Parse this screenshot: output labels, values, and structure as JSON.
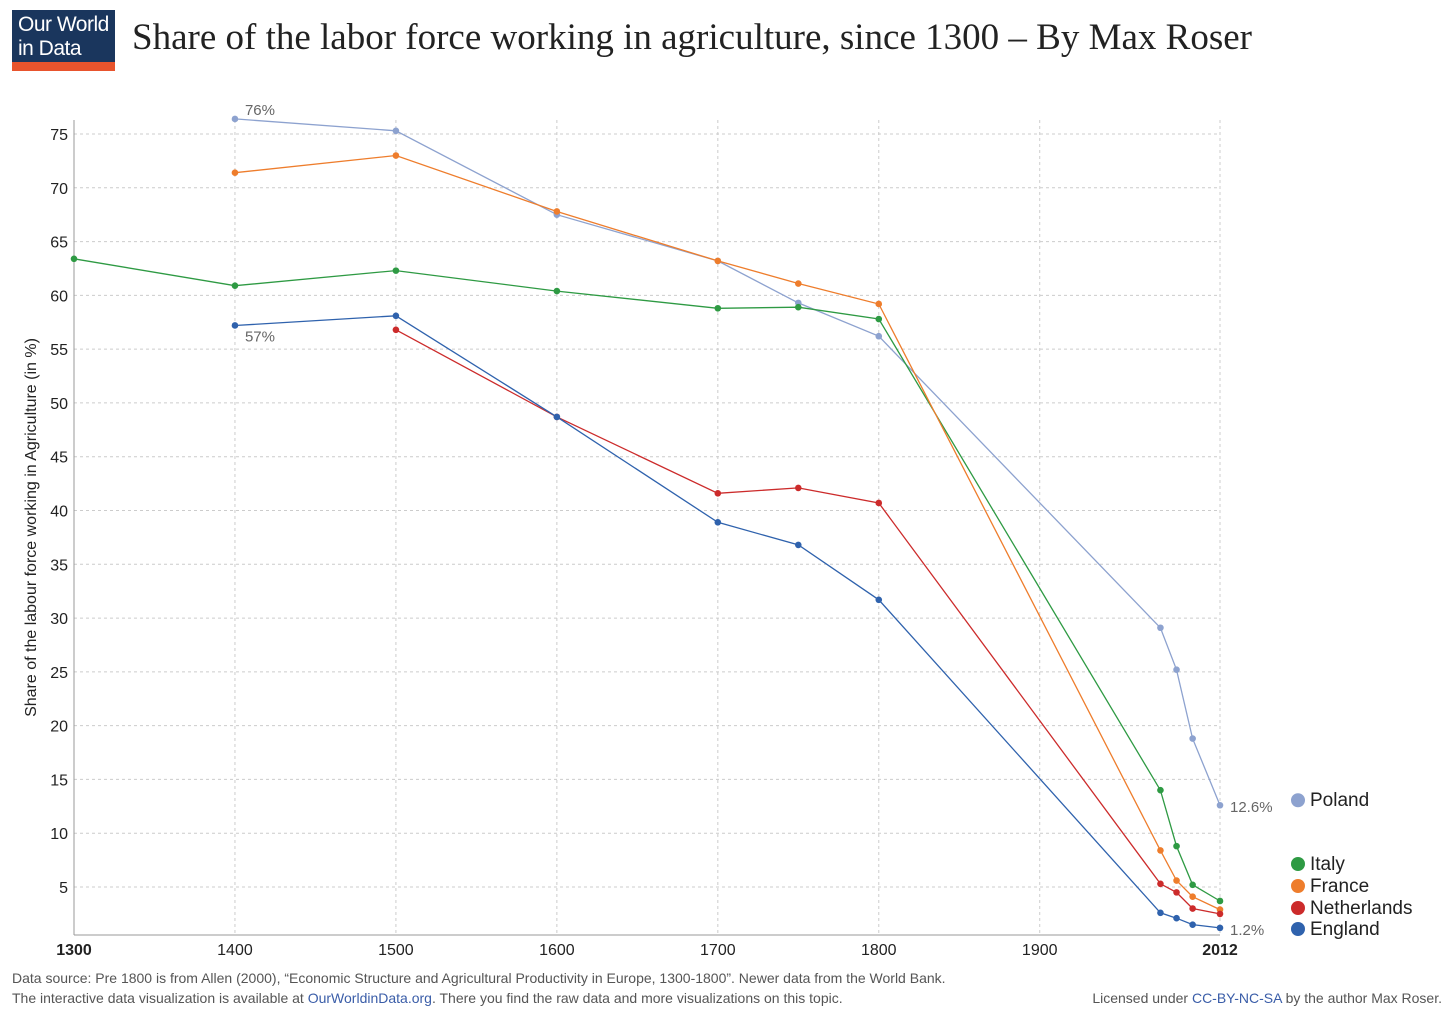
{
  "logo": {
    "line1": "Our World",
    "line2": "in Data"
  },
  "header": {
    "title": "Share of the labor force working in agriculture, since 1300 – By Max Roser"
  },
  "footer": {
    "source_text": "Data source: Pre 1800 is from Allen (2000), “Economic Structure and Agricultural Productivity in Europe, 1300-1800”. Newer data from the World Bank.",
    "interactive_prefix": "The interactive data visualization is available at ",
    "interactive_link": "OurWorldinData.org",
    "interactive_suffix": ". There you find the raw data and more visualizations on this topic.",
    "license_prefix": "Licensed under ",
    "license_link": "CC-BY-NC-SA",
    "license_suffix": " by the author Max Roser."
  },
  "colors": {
    "grid": "#cccccc",
    "axis": "#999999",
    "link": "#3a5da8"
  },
  "chart_data": {
    "type": "line",
    "title": "Share of the labor force working in agriculture, since 1300",
    "xlabel": "",
    "ylabel": "Share of the labour force working in Agriculture (in %)",
    "xlim": [
      1300,
      2012
    ],
    "ylim": [
      0,
      76
    ],
    "x_ticks": [
      1300,
      1400,
      1500,
      1600,
      1700,
      1800,
      1900,
      2012
    ],
    "x_ticks_bold": [
      1300,
      2012
    ],
    "y_ticks": [
      5,
      10,
      15,
      20,
      25,
      30,
      35,
      40,
      45,
      50,
      55,
      60,
      65,
      70,
      75
    ],
    "grid": true,
    "legend_position": "right",
    "series": [
      {
        "name": "Poland",
        "color": "#8da2cf",
        "points": [
          [
            1400,
            76.4
          ],
          [
            1500,
            75.3
          ],
          [
            1600,
            67.5
          ],
          [
            1700,
            63.2
          ],
          [
            1750,
            59.3
          ],
          [
            1800,
            56.2
          ],
          [
            1975,
            29.1
          ],
          [
            1985,
            25.2
          ],
          [
            1995,
            18.8
          ],
          [
            2012,
            12.6
          ]
        ]
      },
      {
        "name": "Italy",
        "color": "#2e9a43",
        "points": [
          [
            1300,
            63.4
          ],
          [
            1400,
            60.9
          ],
          [
            1500,
            62.3
          ],
          [
            1600,
            60.4
          ],
          [
            1700,
            58.8
          ],
          [
            1750,
            58.9
          ],
          [
            1800,
            57.8
          ],
          [
            1975,
            14.0
          ],
          [
            1985,
            8.8
          ],
          [
            1995,
            5.2
          ],
          [
            2012,
            3.7
          ]
        ]
      },
      {
        "name": "France",
        "color": "#ee7d2c",
        "points": [
          [
            1400,
            71.4
          ],
          [
            1500,
            73.0
          ],
          [
            1600,
            67.8
          ],
          [
            1700,
            63.2
          ],
          [
            1750,
            61.1
          ],
          [
            1800,
            59.2
          ],
          [
            1975,
            8.4
          ],
          [
            1985,
            5.6
          ],
          [
            1995,
            4.1
          ],
          [
            2012,
            2.9
          ]
        ]
      },
      {
        "name": "Netherlands",
        "color": "#cc2b2b",
        "points": [
          [
            1500,
            56.8
          ],
          [
            1600,
            48.7
          ],
          [
            1700,
            41.6
          ],
          [
            1750,
            42.1
          ],
          [
            1800,
            40.7
          ],
          [
            1975,
            5.3
          ],
          [
            1985,
            4.5
          ],
          [
            1995,
            3.0
          ],
          [
            2012,
            2.5
          ]
        ]
      },
      {
        "name": "England",
        "color": "#2f62ad",
        "points": [
          [
            1400,
            57.2
          ],
          [
            1500,
            58.1
          ],
          [
            1600,
            48.7
          ],
          [
            1700,
            38.9
          ],
          [
            1750,
            36.8
          ],
          [
            1800,
            31.7
          ],
          [
            1975,
            2.6
          ],
          [
            1985,
            2.1
          ],
          [
            1995,
            1.5
          ],
          [
            2012,
            1.2
          ]
        ]
      }
    ],
    "annotations": [
      {
        "text": "76%",
        "x": 1400,
        "y": 76.4,
        "placement": "above-right"
      },
      {
        "text": "57%",
        "x": 1400,
        "y": 57.2,
        "placement": "below-right"
      },
      {
        "text": "12.6%",
        "x": 2012,
        "y": 12.6,
        "placement": "right"
      },
      {
        "text": "1.2%",
        "x": 2012,
        "y": 1.2,
        "placement": "right"
      }
    ],
    "legend": [
      {
        "name": "Poland",
        "color": "#8da2cf"
      },
      {
        "name": "Italy",
        "color": "#2e9a43"
      },
      {
        "name": "France",
        "color": "#ee7d2c"
      },
      {
        "name": "Netherlands",
        "color": "#cc2b2b"
      },
      {
        "name": "England",
        "color": "#2f62ad"
      }
    ]
  }
}
